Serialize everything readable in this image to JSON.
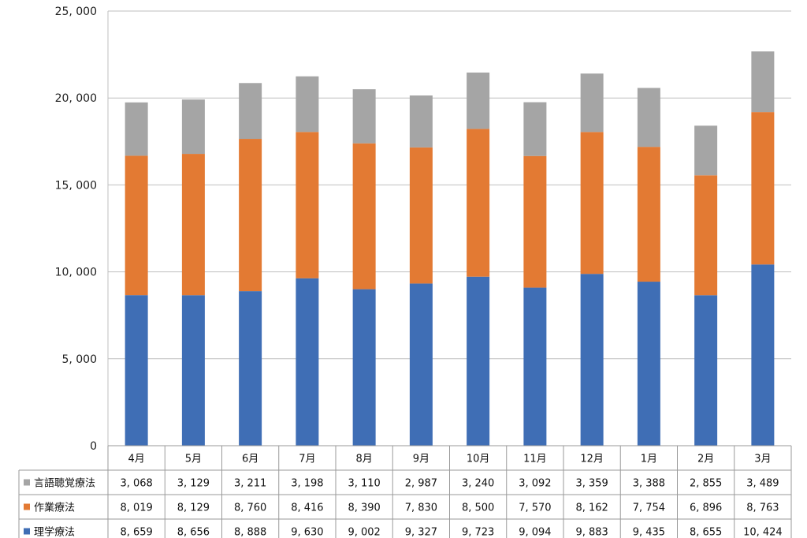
{
  "chart_data": {
    "type": "bar",
    "stacked": true,
    "categories": [
      "4月",
      "5月",
      "6月",
      "7月",
      "8月",
      "9月",
      "10月",
      "11月",
      "12月",
      "1月",
      "2月",
      "3月"
    ],
    "series": [
      {
        "name": "理学療法",
        "color": "#3f6eb5",
        "values": [
          8659,
          8656,
          8888,
          9630,
          9002,
          9327,
          9723,
          9094,
          9883,
          9435,
          8655,
          10424
        ],
        "labels": [
          "8, 659",
          "8, 656",
          "8, 888",
          "9, 630",
          "9, 002",
          "9, 327",
          "9, 723",
          "9, 094",
          "9, 883",
          "9, 435",
          "8, 655",
          "10, 424"
        ]
      },
      {
        "name": "作業療法",
        "color": "#e37a33",
        "values": [
          8019,
          8129,
          8760,
          8416,
          8390,
          7830,
          8500,
          7570,
          8162,
          7754,
          6896,
          8763
        ],
        "labels": [
          "8, 019",
          "8, 129",
          "8, 760",
          "8, 416",
          "8, 390",
          "7, 830",
          "8, 500",
          "7, 570",
          "8, 162",
          "7, 754",
          "6, 896",
          "8, 763"
        ]
      },
      {
        "name": "言語聴覚療法",
        "color": "#a5a5a5",
        "values": [
          3068,
          3129,
          3211,
          3198,
          3110,
          2987,
          3240,
          3092,
          3359,
          3388,
          2855,
          3489
        ],
        "labels": [
          "3, 068",
          "3, 129",
          "3, 211",
          "3, 198",
          "3, 110",
          "2, 987",
          "3, 240",
          "3, 092",
          "3, 359",
          "3, 388",
          "2, 855",
          "3, 489"
        ]
      }
    ],
    "table_row_order": [
      "言語聴覚療法",
      "作業療法",
      "理学療法"
    ],
    "ylim": [
      0,
      25000
    ],
    "yticks": [
      0,
      5000,
      10000,
      15000,
      20000,
      25000
    ],
    "ytick_labels": [
      "0",
      "5, 000",
      "10, 000",
      "15, 000",
      "20, 000",
      "25, 000"
    ],
    "grid": true,
    "legend": "data-table"
  }
}
